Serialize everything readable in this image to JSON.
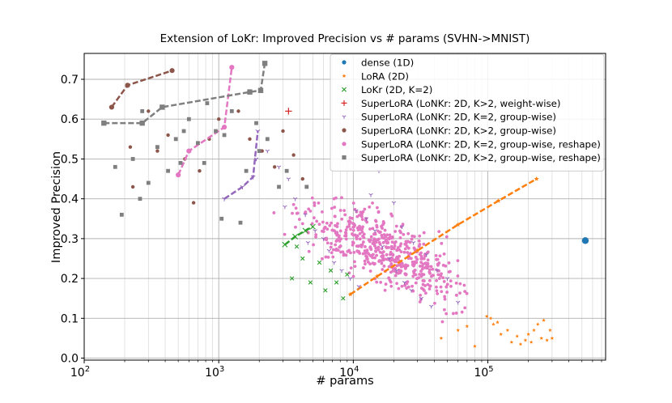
{
  "chart_data": {
    "type": "scatter",
    "title": "Extension of LoKr: Improved Precision vs # params (SVHN->MNIST)",
    "xlabel": "# params",
    "ylabel": "Improved Precision",
    "xscale": "log",
    "xlim": [
      100,
      750000
    ],
    "ylim": [
      -0.005,
      0.765
    ],
    "grid": "on (major and minor)",
    "legend_position": "top-right",
    "x_ticks": [
      {
        "value": 100,
        "base": "10",
        "exp": "2"
      },
      {
        "value": 1000,
        "base": "10",
        "exp": "3"
      },
      {
        "value": 10000,
        "base": "10",
        "exp": "4"
      },
      {
        "value": 100000,
        "base": "10",
        "exp": "5"
      }
    ],
    "y_ticks": [
      {
        "value": 0.0,
        "label": "0.0"
      },
      {
        "value": 0.1,
        "label": "0.1"
      },
      {
        "value": 0.2,
        "label": "0.2"
      },
      {
        "value": 0.3,
        "label": "0.3"
      },
      {
        "value": 0.4,
        "label": "0.4"
      },
      {
        "value": 0.5,
        "label": "0.5"
      },
      {
        "value": 0.6,
        "label": "0.6"
      },
      {
        "value": 0.7,
        "label": "0.7"
      }
    ],
    "series": [
      {
        "name": "dense (1D)",
        "color": "#1f77b4",
        "marker": "circle",
        "points": [
          [
            530000,
            0.295
          ]
        ],
        "line": [
          [
            530000,
            0.295
          ]
        ]
      },
      {
        "name": "LoRA (2D)",
        "color": "#ff7f0e",
        "marker": "star",
        "points": [
          [
            98000,
            0.105
          ],
          [
            105000,
            0.1
          ],
          [
            110000,
            0.085
          ],
          [
            118000,
            0.09
          ],
          [
            125000,
            0.06
          ],
          [
            140000,
            0.07
          ],
          [
            150000,
            0.04
          ],
          [
            165000,
            0.055
          ],
          [
            175000,
            0.035
          ],
          [
            190000,
            0.045
          ],
          [
            200000,
            0.06
          ],
          [
            210000,
            0.04
          ],
          [
            220000,
            0.07
          ],
          [
            235000,
            0.085
          ],
          [
            250000,
            0.05
          ],
          [
            260000,
            0.095
          ],
          [
            275000,
            0.045
          ],
          [
            290000,
            0.07
          ],
          [
            300000,
            0.05
          ],
          [
            60000,
            0.07
          ],
          [
            70000,
            0.08
          ],
          [
            80000,
            0.03
          ],
          [
            45000,
            0.05
          ]
        ],
        "line": [
          [
            9500,
            0.16
          ],
          [
            15000,
            0.205
          ],
          [
            30000,
            0.27
          ],
          [
            60000,
            0.335
          ],
          [
            120000,
            0.395
          ],
          [
            230000,
            0.45
          ]
        ]
      },
      {
        "name": "LoKr (2D, K=2)",
        "color": "#2ca02c",
        "marker": "x",
        "points": [
          [
            3500,
            0.2
          ],
          [
            4200,
            0.25
          ],
          [
            4800,
            0.19
          ],
          [
            5600,
            0.24
          ],
          [
            6200,
            0.17
          ],
          [
            6800,
            0.22
          ],
          [
            7500,
            0.19
          ],
          [
            8400,
            0.15
          ],
          [
            9000,
            0.21
          ],
          [
            3800,
            0.28
          ]
        ],
        "line": [
          [
            3100,
            0.285
          ],
          [
            3700,
            0.305
          ],
          [
            4400,
            0.32
          ],
          [
            5000,
            0.33
          ]
        ]
      },
      {
        "name": "SuperLoRA (LoNKr: 2D, K>2, weight-wise)",
        "color": "#d62728",
        "marker": "plus",
        "points": [
          [
            3300,
            0.62
          ]
        ],
        "line": []
      },
      {
        "name": "SuperLoRA (LoNKr: 2D, K=2, group-wise)",
        "color": "#9467bd",
        "marker": "tri_down",
        "points": [
          [
            1900,
            0.5
          ],
          [
            2300,
            0.52
          ],
          [
            2800,
            0.48
          ],
          [
            3300,
            0.45
          ],
          [
            3700,
            0.4
          ],
          [
            4400,
            0.36
          ],
          [
            5200,
            0.32
          ],
          [
            6000,
            0.3
          ],
          [
            6600,
            0.27
          ],
          [
            7200,
            0.24
          ],
          [
            8200,
            0.22
          ],
          [
            9500,
            0.2
          ],
          [
            11000,
            0.18
          ],
          [
            12500,
            0.35
          ],
          [
            14500,
            0.32
          ],
          [
            16500,
            0.28
          ],
          [
            18500,
            0.25
          ],
          [
            21000,
            0.22
          ],
          [
            24000,
            0.19
          ],
          [
            27000,
            0.17
          ],
          [
            32000,
            0.15
          ],
          [
            38000,
            0.13
          ],
          [
            3100,
            0.38
          ],
          [
            4600,
            0.29
          ],
          [
            10500,
            0.37
          ],
          [
            13500,
            0.41
          ],
          [
            15500,
            0.47
          ],
          [
            20000,
            0.39
          ],
          [
            23000,
            0.33
          ],
          [
            28000,
            0.29
          ],
          [
            35000,
            0.26
          ],
          [
            42000,
            0.22
          ],
          [
            50000,
            0.2
          ],
          [
            60000,
            0.14
          ]
        ],
        "line": [
          [
            1100,
            0.4
          ],
          [
            1500,
            0.43
          ],
          [
            1800,
            0.455
          ],
          [
            1950,
            0.57
          ]
        ]
      },
      {
        "name": "SuperLoRA (LoNKr: 2D, K>2, group-wise)",
        "color": "#8c564b",
        "marker": "circle",
        "points": [
          [
            220,
            0.53
          ],
          [
            300,
            0.62
          ],
          [
            420,
            0.56
          ],
          [
            560,
            0.5
          ],
          [
            650,
            0.39
          ],
          [
            720,
            0.47
          ],
          [
            850,
            0.55
          ],
          [
            1000,
            0.6
          ],
          [
            1400,
            0.62
          ],
          [
            1700,
            0.55
          ],
          [
            2100,
            0.52
          ],
          [
            2600,
            0.48
          ],
          [
            3000,
            0.57
          ],
          [
            3600,
            0.51
          ],
          [
            4200,
            0.45
          ],
          [
            230,
            0.43
          ],
          [
            350,
            0.52
          ]
        ],
        "line": [
          [
            160,
            0.63
          ],
          [
            210,
            0.685
          ],
          [
            450,
            0.722
          ]
        ]
      },
      {
        "name": "SuperLoRA (LoNKr: 2D, K=2, group-wise, reshape)",
        "color": "#e377c2",
        "marker": "circle",
        "points": [],
        "line": [
          [
            500,
            0.46
          ],
          [
            600,
            0.52
          ],
          [
            1100,
            0.58
          ],
          [
            1250,
            0.73
          ]
        ]
      },
      {
        "name": "SuperLoRA (LoNKr: 2D, K>2, group-wise, reshape)",
        "color": "#7f7f7f",
        "marker": "square",
        "points": [
          [
            170,
            0.48
          ],
          [
            190,
            0.36
          ],
          [
            230,
            0.5
          ],
          [
            260,
            0.4
          ],
          [
            300,
            0.44
          ],
          [
            350,
            0.53
          ],
          [
            420,
            0.47
          ],
          [
            480,
            0.55
          ],
          [
            520,
            0.49
          ],
          [
            600,
            0.6
          ],
          [
            700,
            0.54
          ],
          [
            820,
            0.64
          ],
          [
            950,
            0.57
          ],
          [
            1050,
            0.35
          ],
          [
            1250,
            0.62
          ],
          [
            1450,
            0.34
          ],
          [
            1700,
            0.67
          ],
          [
            1900,
            0.59
          ],
          [
            2300,
            0.55
          ],
          [
            2800,
            0.43
          ],
          [
            3200,
            0.47
          ],
          [
            4500,
            0.43
          ],
          [
            270,
            0.62
          ],
          [
            550,
            0.57
          ],
          [
            780,
            0.49
          ],
          [
            1100,
            0.56
          ],
          [
            1600,
            0.47
          ],
          [
            2000,
            0.52
          ]
        ],
        "line": [
          [
            140,
            0.59
          ],
          [
            270,
            0.59
          ],
          [
            380,
            0.63
          ],
          [
            1700,
            0.668
          ],
          [
            2050,
            0.672
          ],
          [
            2200,
            0.74
          ]
        ]
      }
    ]
  }
}
